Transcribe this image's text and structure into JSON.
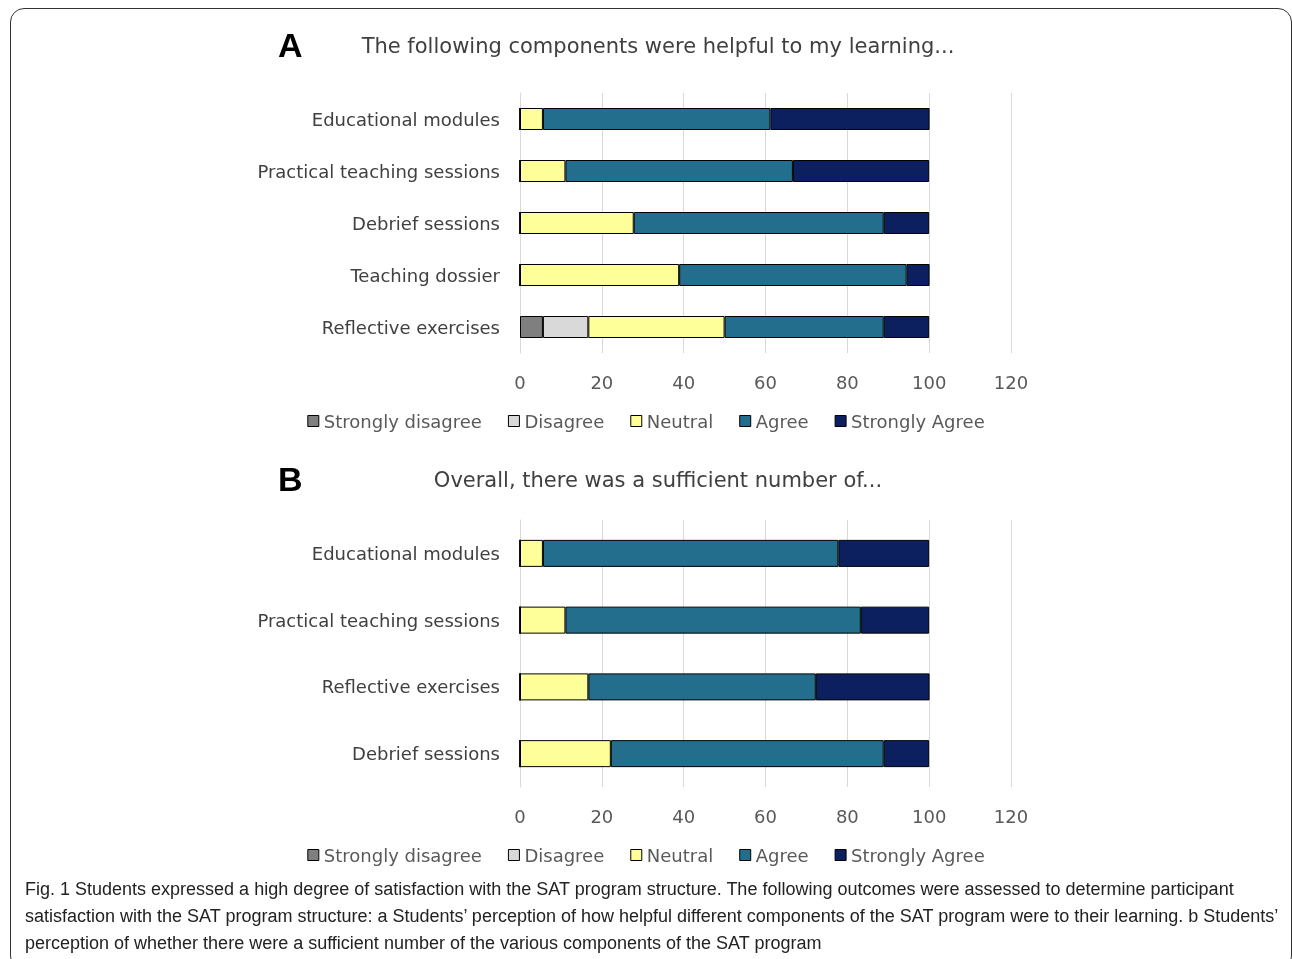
{
  "chart_data": [
    {
      "type": "bar",
      "orientation": "horizontal",
      "stacked": true,
      "title": "The following components were helpful to my learning...",
      "annotations": [
        "A"
      ],
      "categories": [
        "Educational modules",
        "Practical teaching sessions",
        "Debrief sessions",
        "Teaching dossier",
        "Reflective exercises"
      ],
      "series": [
        {
          "name": "Strongly disagree",
          "color": "#7f7f7f",
          "values": [
            0,
            0,
            0,
            0,
            5.6
          ]
        },
        {
          "name": "Disagree",
          "color": "#d9d9d9",
          "values": [
            0,
            0,
            0,
            0,
            11.1
          ]
        },
        {
          "name": "Neutral",
          "color": "#ffff99",
          "values": [
            5.6,
            11.1,
            27.8,
            38.9,
            33.3
          ]
        },
        {
          "name": "Agree",
          "color": "#236e8c",
          "values": [
            55.6,
            55.6,
            61.1,
            55.6,
            38.9
          ]
        },
        {
          "name": "Strongly Agree",
          "color": "#0c2060",
          "values": [
            38.9,
            33.3,
            11.1,
            5.6,
            11.1
          ]
        }
      ],
      "xlim": [
        0,
        120
      ],
      "xticks": [
        0,
        20,
        40,
        60,
        80,
        100,
        120
      ],
      "grid": "x",
      "legend": "bottom"
    },
    {
      "type": "bar",
      "orientation": "horizontal",
      "stacked": true,
      "title": "Overall, there was a sufficient number of...",
      "annotations": [
        "B",
        "Fig. 1 Students expressed a high degree of satisfaction with the SAT program structure. The following outcomes were assessed to determine participant satisfaction with the SAT program structure: a Students’ perception of how helpful different components of the SAT program were to their learning. b Students’ perception of whether there were a sufficient number of the various components of the SAT program"
      ],
      "categories": [
        "Educational modules",
        "Practical teaching sessions",
        "Reflective exercises",
        "Debrief sessions"
      ],
      "series": [
        {
          "name": "Strongly disagree",
          "color": "#7f7f7f",
          "values": [
            0,
            0,
            0,
            0
          ]
        },
        {
          "name": "Disagree",
          "color": "#d9d9d9",
          "values": [
            0,
            0,
            0,
            0
          ]
        },
        {
          "name": "Neutral",
          "color": "#ffff99",
          "values": [
            5.6,
            11.1,
            16.7,
            22.2
          ]
        },
        {
          "name": "Agree",
          "color": "#236e8c",
          "values": [
            72.2,
            72.2,
            55.6,
            66.7
          ]
        },
        {
          "name": "Strongly Agree",
          "color": "#0c2060",
          "values": [
            22.2,
            16.7,
            27.8,
            11.1
          ]
        }
      ],
      "xlim": [
        0,
        120
      ],
      "xticks": [
        0,
        20,
        40,
        60,
        80,
        100,
        120
      ],
      "grid": "x",
      "legend": "bottom"
    }
  ]
}
